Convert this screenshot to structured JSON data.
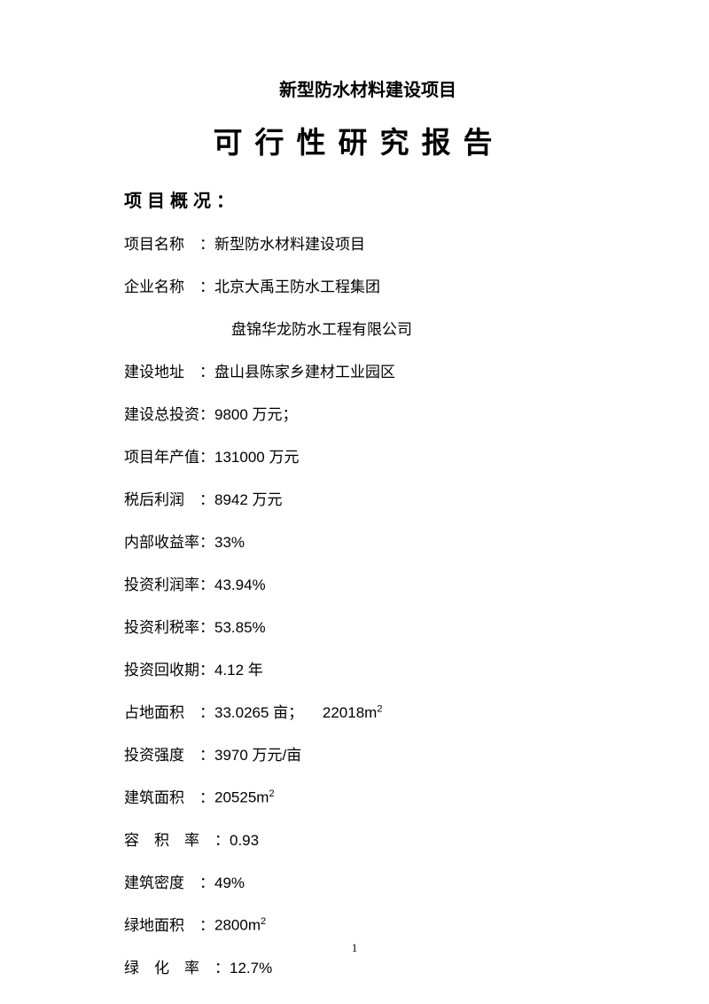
{
  "subtitle": "新型防水材料建设项目",
  "title": "可行性研究报告",
  "sectionHead": "项目概况：",
  "rows": [
    {
      "label": "项目名称",
      "gap": " ",
      "sep": "：",
      "value": "新型防水材料建设项目"
    },
    {
      "label": "企业名称",
      "gap": " ",
      "sep": "：",
      "value": "北京大禹王防水工程集团"
    },
    {
      "continuation": true,
      "value": "盘锦华龙防水工程有限公司"
    },
    {
      "label": "建设地址",
      "gap": " ",
      "sep": "：",
      "value": "盘山县陈家乡建材工业园区"
    },
    {
      "label": "建设总投资",
      "gap": "",
      "sep": "：",
      "value": "9800 万元；"
    },
    {
      "label": "项目年产值",
      "gap": "",
      "sep": "：",
      "value": "131000 万元"
    },
    {
      "label": "税后利润",
      "gap": " ",
      "sep": "：",
      "value": "8942 万元"
    },
    {
      "label": "内部收益率",
      "gap": "",
      "sep": "：",
      "value": "33%"
    },
    {
      "label": "投资利润率",
      "gap": "",
      "sep": "：",
      "value": "43.94%"
    },
    {
      "label": "投资利税率",
      "gap": "",
      "sep": "：",
      "value": "53.85%"
    },
    {
      "label": "投资回收期",
      "gap": "",
      "sep": "：",
      "value": "4.12 年"
    },
    {
      "label": "占地面积",
      "gap": " ",
      "sep": "：",
      "value": "33.0265 亩；  22018m",
      "sup": "2"
    },
    {
      "label": "投资强度",
      "gap": " ",
      "sep": "：",
      "value": "3970 万元/亩"
    },
    {
      "label": "建筑面积",
      "gap": " ",
      "sep": "：",
      "value": "20525m",
      "sup": "2"
    },
    {
      "label": "容 积 率",
      "gap": " ",
      "sep": "：",
      "value": "0.93"
    },
    {
      "label": "建筑密度",
      "gap": " ",
      "sep": "：",
      "value": "49%"
    },
    {
      "label": "绿地面积",
      "gap": " ",
      "sep": "：",
      "value": "2800m",
      "sup": "2"
    },
    {
      "label": "绿 化 率",
      "gap": " ",
      "sep": "：",
      "value": "12.7%"
    }
  ],
  "pageNumber": "1"
}
